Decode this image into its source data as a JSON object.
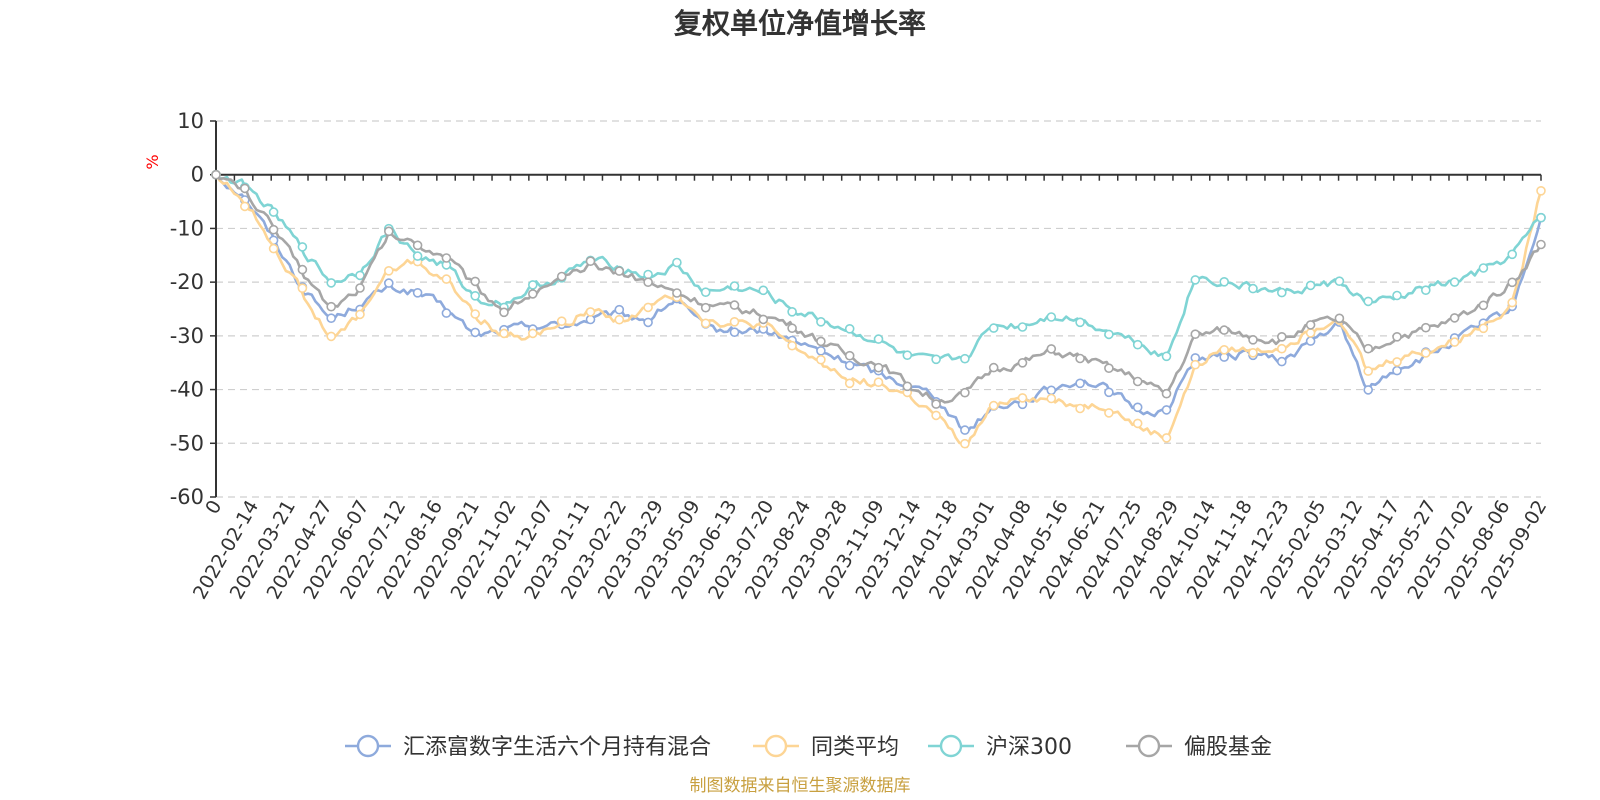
{
  "chart_data": {
    "type": "line",
    "title": "复权单位净值增长率",
    "unit_label": "%",
    "ylim": [
      -60,
      10
    ],
    "y_ticks": [
      "10",
      "0",
      "-10",
      "-20",
      "-30",
      "-40",
      "-50",
      "-60"
    ],
    "x_tick_labels": [
      "0",
      "2022-02-14",
      "2022-03-21",
      "2022-04-27",
      "2022-06-07",
      "2022-07-12",
      "2022-08-16",
      "2022-09-21",
      "2022-11-02",
      "2022-12-07",
      "2023-01-11",
      "2023-02-22",
      "2023-03-29",
      "2023-05-09",
      "2023-06-13",
      "2023-07-20",
      "2023-08-24",
      "2023-09-28",
      "2023-11-09",
      "2023-12-14",
      "2024-01-18",
      "2024-03-01",
      "2024-04-08",
      "2024-05-16",
      "2024-06-21",
      "2024-07-25",
      "2024-08-29",
      "2024-10-14",
      "2024-11-18",
      "2024-12-23",
      "2025-02-05",
      "2025-03-12",
      "2025-04-17",
      "2025-05-27",
      "2025-07-02",
      "2025-08-06",
      "2025-09-02"
    ],
    "grid": "dashed horizontal",
    "legend_position": "bottom",
    "series": [
      {
        "name": "汇添富数字生活六个月持有混合",
        "color": "#8eaadc",
        "values": [
          0,
          -4,
          -12,
          -21,
          -27,
          -24,
          -21,
          -22,
          -25,
          -30,
          -29,
          -28,
          -28,
          -27,
          -26,
          -27,
          -23,
          -29,
          -29,
          -29,
          -31,
          -33,
          -35,
          -37,
          -39,
          -41,
          -48,
          -43,
          -42,
          -40,
          -38,
          -40,
          -44,
          -44,
          -34,
          -34,
          -33,
          -35,
          -31,
          -28,
          -40,
          -36,
          -34,
          -31,
          -28,
          -25,
          -8
        ]
      },
      {
        "name": "同类平均",
        "color": "#fdd595",
        "values": [
          0,
          -5,
          -13,
          -22,
          -31,
          -26,
          -18,
          -16,
          -20,
          -26,
          -30,
          -30,
          -28,
          -25,
          -27,
          -25,
          -22,
          -27,
          -28,
          -28,
          -32,
          -35,
          -38,
          -39,
          -41,
          -45,
          -51,
          -43,
          -41,
          -42,
          -43,
          -43,
          -47,
          -49,
          -36,
          -32,
          -33,
          -32,
          -29,
          -26,
          -37,
          -34,
          -33,
          -31,
          -28,
          -24,
          -3
        ]
      },
      {
        "name": "沪深300",
        "color": "#7fd4d4",
        "values": [
          0,
          -2,
          -7,
          -14,
          -20,
          -18,
          -10,
          -15,
          -17,
          -23,
          -24,
          -21,
          -19,
          -16,
          -17,
          -19,
          -17,
          -22,
          -21,
          -22,
          -25,
          -27,
          -29,
          -31,
          -34,
          -35,
          -34,
          -28,
          -28,
          -26,
          -27,
          -29,
          -31,
          -34,
          -19,
          -20,
          -21,
          -22,
          -21,
          -20,
          -24,
          -23,
          -21,
          -20,
          -18,
          -15,
          -8
        ]
      },
      {
        "name": "偏股基金",
        "color": "#a6a6a6",
        "values": [
          0,
          -3,
          -10,
          -18,
          -25,
          -21,
          -11,
          -13,
          -15,
          -21,
          -25,
          -22,
          -20,
          -17,
          -18,
          -20,
          -22,
          -24,
          -25,
          -26,
          -28,
          -31,
          -34,
          -35,
          -39,
          -42,
          -41,
          -36,
          -35,
          -33,
          -34,
          -36,
          -38,
          -41,
          -30,
          -29,
          -30,
          -31,
          -28,
          -27,
          -33,
          -30,
          -29,
          -27,
          -24,
          -20,
          -13
        ]
      }
    ]
  },
  "source_note": "制图数据来自恒生聚源数据库"
}
